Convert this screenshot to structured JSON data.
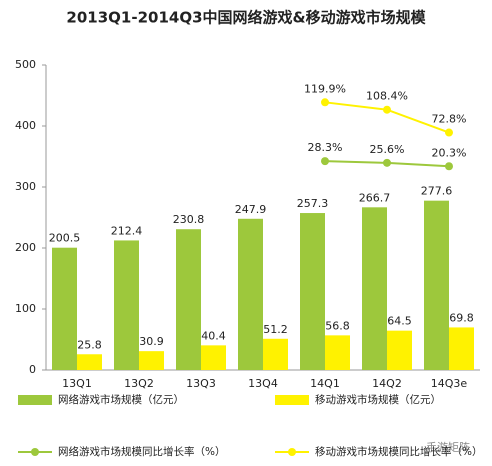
{
  "chart_data": {
    "type": "bar",
    "title": "2013Q1-2014Q3中国网络游戏&移动游戏市场规模",
    "categories": [
      "13Q1",
      "13Q2",
      "13Q3",
      "13Q4",
      "14Q1",
      "14Q2",
      "14Q3e"
    ],
    "ylim": [
      0,
      500
    ],
    "yticks": [
      0,
      100,
      200,
      300,
      400,
      500
    ],
    "y2lim": [
      -297,
      178
    ],
    "legend": "bottom",
    "watermark": "手游矩阵",
    "series": [
      {
        "name": "网络游戏市场规模（亿元）",
        "type": "bar",
        "color": "#9dc83c",
        "values": [
          200.5,
          212.4,
          230.8,
          247.9,
          257.3,
          266.7,
          277.6
        ]
      },
      {
        "name": "移动游戏市场规模（亿元）",
        "type": "bar",
        "color": "#fff200",
        "values": [
          25.8,
          30.9,
          40.4,
          51.2,
          56.8,
          64.5,
          69.8
        ]
      },
      {
        "name": "网络游戏市场规模同比增长率（%）",
        "type": "line",
        "axis": "y2",
        "color": "#9dc83c",
        "values": [
          null,
          null,
          null,
          null,
          28.3,
          25.6,
          20.3
        ],
        "value_labels": [
          null,
          null,
          null,
          null,
          "28.3%",
          "25.6%",
          "20.3%"
        ]
      },
      {
        "name": "移动游戏市场规模同比增长率（%）",
        "type": "line",
        "axis": "y2",
        "color": "#fff200",
        "values": [
          null,
          null,
          null,
          null,
          119.9,
          108.4,
          72.8
        ],
        "value_labels": [
          null,
          null,
          null,
          null,
          "119.9%",
          "108.4%",
          "72.8%"
        ]
      }
    ]
  }
}
